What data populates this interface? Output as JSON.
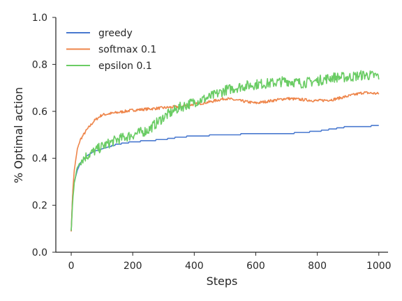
{
  "chart_data": {
    "type": "line",
    "title": "",
    "xlabel": "Steps",
    "ylabel": "% Optimal action",
    "xlim": [
      -50,
      1030
    ],
    "ylim": [
      0.0,
      1.0
    ],
    "xticks": [
      0,
      200,
      400,
      600,
      800,
      1000
    ],
    "yticks": [
      0.0,
      0.2,
      0.4,
      0.6,
      0.8,
      1.0
    ],
    "xtick_labels": [
      "0",
      "200",
      "400",
      "600",
      "800",
      "1000"
    ],
    "ytick_labels": [
      "0.0",
      "0.2",
      "0.4",
      "0.6",
      "0.8",
      "1.0"
    ],
    "grid": false,
    "legend_position": "top-left",
    "series": [
      {
        "name": "greedy",
        "color": "#4878cf",
        "x": [
          0,
          5,
          10,
          20,
          30,
          50,
          75,
          100,
          150,
          200,
          250,
          300,
          350,
          400,
          500,
          600,
          700,
          800,
          850,
          900,
          950,
          1000
        ],
        "y": [
          0.09,
          0.26,
          0.3,
          0.35,
          0.38,
          0.41,
          0.43,
          0.44,
          0.46,
          0.47,
          0.475,
          0.48,
          0.49,
          0.495,
          0.5,
          0.505,
          0.505,
          0.515,
          0.525,
          0.535,
          0.535,
          0.54
        ]
      },
      {
        "name": "softmax 0.1",
        "color": "#ee854a",
        "x": [
          0,
          5,
          10,
          20,
          30,
          50,
          75,
          100,
          150,
          200,
          250,
          300,
          350,
          400,
          450,
          500,
          600,
          700,
          800,
          850,
          900,
          950,
          1000
        ],
        "y": [
          0.09,
          0.26,
          0.35,
          0.44,
          0.48,
          0.52,
          0.56,
          0.585,
          0.595,
          0.605,
          0.61,
          0.615,
          0.62,
          0.63,
          0.64,
          0.655,
          0.635,
          0.655,
          0.645,
          0.65,
          0.665,
          0.68,
          0.675
        ]
      },
      {
        "name": "epsilon 0.1",
        "color": "#6acc64",
        "x": [
          0,
          5,
          10,
          20,
          30,
          50,
          75,
          100,
          150,
          200,
          250,
          300,
          350,
          400,
          450,
          500,
          550,
          600,
          650,
          700,
          750,
          800,
          850,
          900,
          950,
          1000
        ],
        "y": [
          0.09,
          0.22,
          0.3,
          0.36,
          0.39,
          0.41,
          0.43,
          0.45,
          0.48,
          0.5,
          0.52,
          0.575,
          0.615,
          0.64,
          0.66,
          0.69,
          0.705,
          0.715,
          0.72,
          0.73,
          0.72,
          0.73,
          0.745,
          0.745,
          0.755,
          0.75
        ]
      }
    ]
  }
}
